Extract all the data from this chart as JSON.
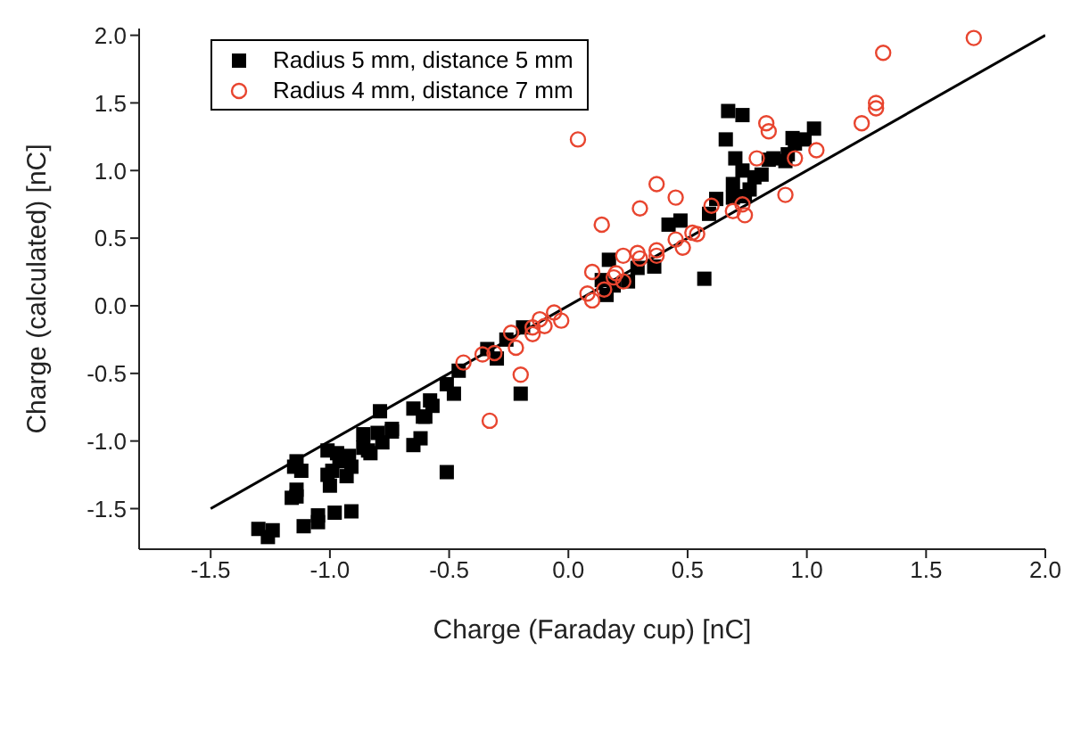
{
  "chart_data": {
    "type": "scatter",
    "xlabel": "Charge (Faraday cup) [nC]",
    "ylabel": "Charge (calculated) [nC]",
    "xlim": [
      -1.8,
      2.0
    ],
    "ylim": [
      -1.8,
      2.05
    ],
    "xticks": [
      -1.5,
      {
        "value": -1,
        "label": "-1.0"
      },
      -0.5,
      {
        "value": 0,
        "label": "0.0"
      },
      0.5,
      {
        "value": 1,
        "label": "1.0"
      },
      1.5,
      {
        "value": 2,
        "label": "2.0"
      }
    ],
    "yticks": [
      -1.5,
      {
        "value": -1,
        "label": "-1.0"
      },
      -0.5,
      {
        "value": 0,
        "label": "0.0"
      },
      0.5,
      {
        "value": 1,
        "label": "1.0"
      },
      1.5,
      {
        "value": 2,
        "label": "2.0"
      }
    ],
    "legend": "top left",
    "series": [
      {
        "name": "Radius 5 mm, distance 5 mm",
        "color": "#000000",
        "marker": "square",
        "x": [
          -1.3,
          -1.26,
          -1.24,
          -1.11,
          -1.05,
          -1.05,
          -0.98,
          -0.91,
          -1.16,
          -1.14,
          -1.14,
          -1.14,
          -1.12,
          -1.15,
          -1.01,
          -1.01,
          -1.0,
          -0.99,
          -0.97,
          -0.96,
          -0.92,
          -0.93,
          -0.91,
          -0.86,
          -0.86,
          -0.83,
          -0.84,
          -0.8,
          -0.78,
          -0.74,
          -0.74,
          -0.79,
          -0.65,
          -0.61,
          -0.6,
          -0.58,
          -0.57,
          -0.65,
          -0.62,
          -0.51,
          -0.48,
          -0.46,
          -0.51,
          -0.3,
          -0.2,
          -0.34,
          -0.26,
          -0.19,
          0.14,
          0.17,
          0.16,
          0.19,
          0.25,
          0.29,
          0.36,
          0.42,
          0.47,
          0.57,
          0.59,
          0.67,
          0.73,
          0.66,
          0.7,
          0.73,
          0.78,
          0.81,
          0.69,
          0.76,
          0.62,
          0.69,
          0.74,
          0.84,
          0.86,
          0.91,
          0.92,
          0.95,
          0.94,
          0.99,
          1.03
        ],
        "values": [
          -1.65,
          -1.71,
          -1.66,
          -1.63,
          -1.55,
          -1.6,
          -1.53,
          -1.52,
          -1.42,
          -1.41,
          -1.36,
          -1.15,
          -1.22,
          -1.19,
          -1.07,
          -1.25,
          -1.33,
          -1.22,
          -1.09,
          -1.15,
          -1.11,
          -1.26,
          -1.19,
          -1.05,
          -0.95,
          -1.09,
          -1.07,
          -0.94,
          -1.01,
          -0.91,
          -0.93,
          -0.78,
          -0.76,
          -0.82,
          -0.82,
          -0.7,
          -0.74,
          -1.03,
          -0.98,
          -0.58,
          -0.65,
          -0.48,
          -1.23,
          -0.39,
          -0.65,
          -0.32,
          -0.25,
          -0.16,
          0.19,
          0.34,
          0.08,
          0.15,
          0.18,
          0.28,
          0.29,
          0.6,
          0.63,
          0.2,
          0.68,
          1.44,
          1.41,
          1.23,
          1.09,
          1.0,
          0.95,
          0.97,
          0.9,
          0.86,
          0.79,
          0.8,
          0.81,
          1.08,
          1.09,
          1.07,
          1.12,
          1.2,
          1.24,
          1.23,
          1.31
        ]
      },
      {
        "name": "Radius 4 mm, distance 7 mm",
        "color": "#e8452f",
        "marker": "circle",
        "x": [
          -0.44,
          -0.36,
          -0.31,
          -0.2,
          -0.33,
          -0.24,
          -0.22,
          -0.15,
          -0.15,
          -0.12,
          -0.1,
          -0.06,
          -0.03,
          0.08,
          0.1,
          0.1,
          0.15,
          0.2,
          0.19,
          0.23,
          0.23,
          0.29,
          0.3,
          0.37,
          0.37,
          0.45,
          0.48,
          0.52,
          0.14,
          0.3,
          0.6,
          0.04,
          0.37,
          0.45,
          0.54,
          1.32,
          1.7,
          1.29,
          1.29,
          1.23,
          0.83,
          0.84,
          0.79,
          0.95,
          1.04,
          0.91,
          0.69,
          0.73,
          0.74
        ],
        "values": [
          -0.42,
          -0.36,
          -0.35,
          -0.51,
          -0.85,
          -0.2,
          -0.31,
          -0.16,
          -0.21,
          -0.1,
          -0.15,
          -0.05,
          -0.11,
          0.09,
          0.04,
          0.25,
          0.12,
          0.24,
          0.21,
          0.18,
          0.37,
          0.39,
          0.35,
          0.41,
          0.37,
          0.49,
          0.43,
          0.54,
          0.6,
          0.72,
          0.74,
          1.23,
          0.9,
          0.8,
          0.53,
          1.87,
          1.98,
          1.5,
          1.46,
          1.35,
          1.35,
          1.29,
          1.09,
          1.09,
          1.15,
          0.82,
          0.7,
          0.75,
          0.67
        ]
      },
      {
        "type": "line",
        "color": "#000000",
        "x": [
          -1.5,
          2.0
        ],
        "values": [
          -1.5,
          2.0
        ]
      }
    ]
  }
}
